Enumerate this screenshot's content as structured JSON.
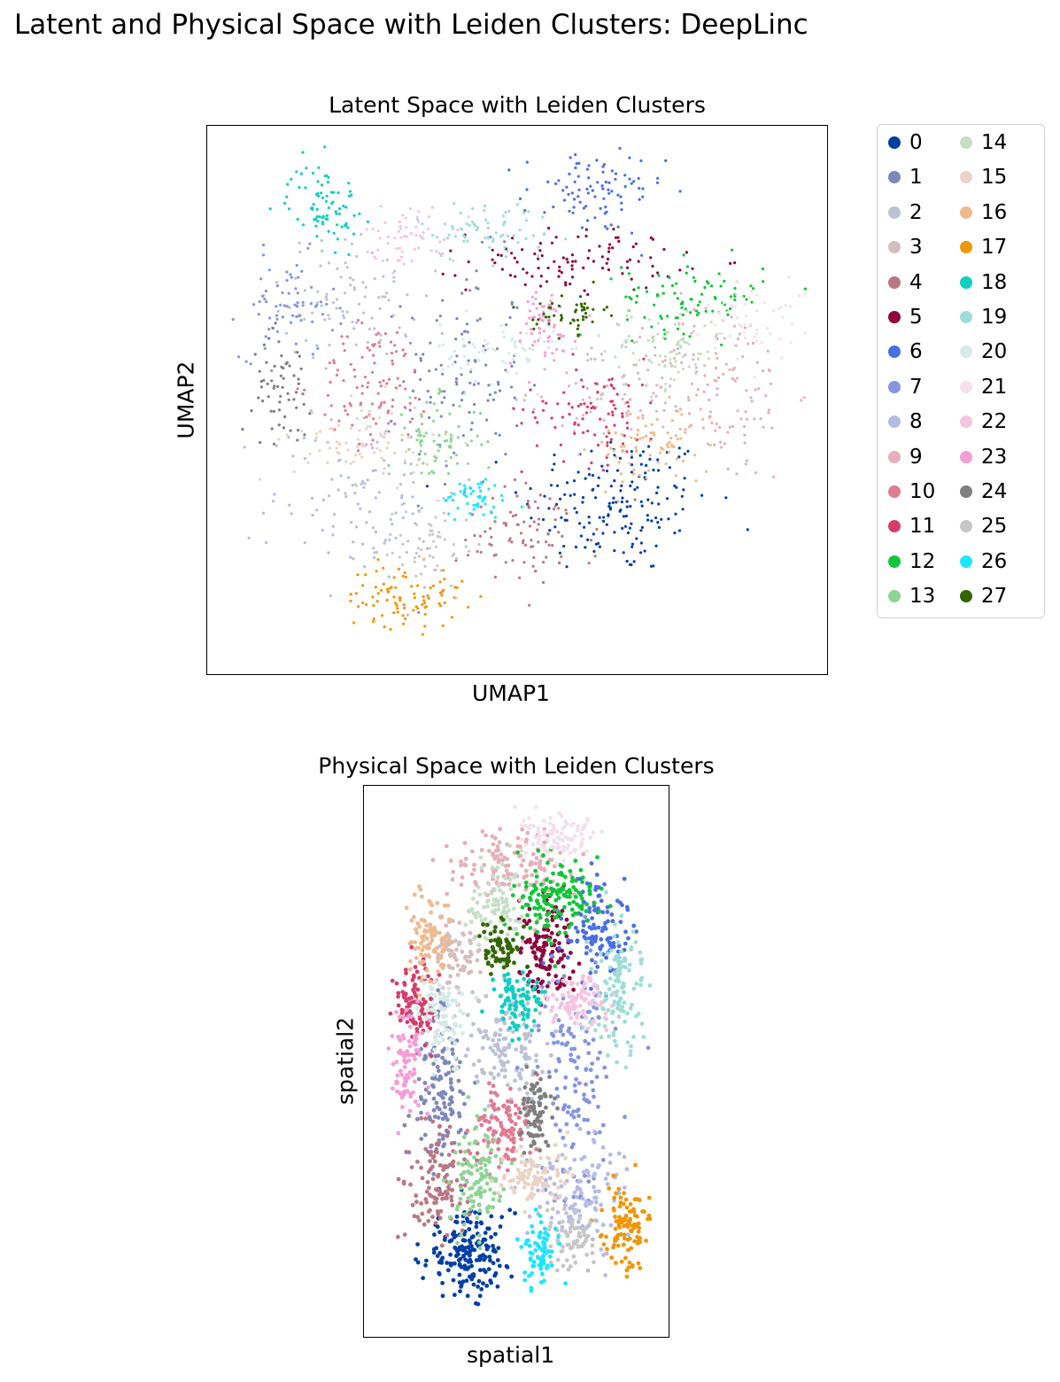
{
  "suptitle": "Latent and Physical Space with Leiden Clusters: DeepLinc",
  "chart_data": [
    {
      "type": "scatter",
      "title": "Latent Space with Leiden Clusters",
      "xlabel": "UMAP1",
      "ylabel": "UMAP2",
      "xlim": [
        0,
        100
      ],
      "ylim": [
        0,
        100
      ],
      "grid": false,
      "legend": "outside-right",
      "clusters": [
        {
          "name": "0",
          "color": "#023fa5",
          "cx": 67,
          "cy": 30,
          "sx": 8,
          "sy": 7,
          "n": 170
        },
        {
          "name": "1",
          "color": "#7d87b9",
          "cx": 41,
          "cy": 55,
          "sx": 5,
          "sy": 11,
          "n": 110
        },
        {
          "name": "2",
          "color": "#bec1d4",
          "cx": 22,
          "cy": 70,
          "sx": 6,
          "sy": 6,
          "n": 90
        },
        {
          "name": "3",
          "color": "#d6bcc0",
          "cx": 68,
          "cy": 52,
          "sx": 8,
          "sy": 5,
          "n": 90
        },
        {
          "name": "4",
          "color": "#bb7784",
          "cx": 52,
          "cy": 24,
          "sx": 6,
          "sy": 5,
          "n": 90
        },
        {
          "name": "5",
          "color": "#8e063b",
          "cx": 60,
          "cy": 77,
          "sx": 9,
          "sy": 3,
          "n": 100
        },
        {
          "name": "6",
          "color": "#4a6fe3",
          "cx": 63,
          "cy": 90,
          "sx": 6,
          "sy": 4,
          "n": 90
        },
        {
          "name": "7",
          "color": "#8595e1",
          "cx": 11,
          "cy": 68,
          "sx": 4,
          "sy": 5,
          "n": 70
        },
        {
          "name": "8",
          "color": "#b5bbe3",
          "cx": 24,
          "cy": 32,
          "sx": 8,
          "sy": 9,
          "n": 110
        },
        {
          "name": "9",
          "color": "#e6afb9",
          "cx": 85,
          "cy": 52,
          "sx": 6,
          "sy": 9,
          "n": 110
        },
        {
          "name": "10",
          "color": "#e07b91",
          "cx": 26,
          "cy": 53,
          "sx": 5,
          "sy": 6,
          "n": 100
        },
        {
          "name": "11",
          "color": "#d33f6a",
          "cx": 63,
          "cy": 48,
          "sx": 6,
          "sy": 5,
          "n": 90
        },
        {
          "name": "12",
          "color": "#11c638",
          "cx": 80,
          "cy": 70,
          "sx": 6,
          "sy": 3.5,
          "n": 90
        },
        {
          "name": "13",
          "color": "#8dd593",
          "cx": 36,
          "cy": 42,
          "sx": 4,
          "sy": 4,
          "n": 70
        },
        {
          "name": "14",
          "color": "#c6dec7",
          "cx": 75,
          "cy": 60,
          "sx": 5,
          "sy": 4,
          "n": 80
        },
        {
          "name": "15",
          "color": "#ead3c6",
          "cx": 24,
          "cy": 42,
          "sx": 6,
          "sy": 4,
          "n": 80
        },
        {
          "name": "16",
          "color": "#f0b98d",
          "cx": 73,
          "cy": 41,
          "sx": 5,
          "sy": 4,
          "n": 80
        },
        {
          "name": "17",
          "color": "#ef9708",
          "cx": 31,
          "cy": 12,
          "sx": 5,
          "sy": 3,
          "n": 90
        },
        {
          "name": "18",
          "color": "#0fcfc0",
          "cx": 17,
          "cy": 88,
          "sx": 3,
          "sy": 4,
          "n": 80
        },
        {
          "name": "19",
          "color": "#9cded6",
          "cx": 45,
          "cy": 83,
          "sx": 6,
          "sy": 3,
          "n": 70
        },
        {
          "name": "20",
          "color": "#d5eae7",
          "cx": 47,
          "cy": 59,
          "sx": 5,
          "sy": 3,
          "n": 70
        },
        {
          "name": "21",
          "color": "#f3e1eb",
          "cx": 90,
          "cy": 66,
          "sx": 4,
          "sy": 4,
          "n": 60
        },
        {
          "name": "22",
          "color": "#f6c4e1",
          "cx": 32,
          "cy": 82,
          "sx": 4,
          "sy": 3,
          "n": 60
        },
        {
          "name": "23",
          "color": "#f79cd4",
          "cx": 54,
          "cy": 64,
          "sx": 3,
          "sy": 4,
          "n": 60
        },
        {
          "name": "24",
          "color": "#7f7f7f",
          "cx": 10,
          "cy": 53,
          "sx": 2.5,
          "sy": 5,
          "n": 60
        },
        {
          "name": "25",
          "color": "#c7c7c7",
          "cx": 35,
          "cy": 22,
          "sx": 4,
          "sy": 4,
          "n": 60
        },
        {
          "name": "26",
          "color": "#1ce6ff",
          "cx": 43,
          "cy": 31,
          "sx": 3,
          "sy": 2,
          "n": 50
        },
        {
          "name": "27",
          "color": "#336600",
          "cx": 59,
          "cy": 67,
          "sx": 3,
          "sy": 2,
          "n": 50
        }
      ]
    },
    {
      "type": "scatter",
      "title": "Physical Space with Leiden Clusters",
      "xlabel": "spatial1",
      "ylabel": "spatial2",
      "xlim": [
        0,
        100
      ],
      "ylim": [
        0,
        100
      ],
      "grid": false,
      "clusters": [
        {
          "name": "0",
          "cx": 32,
          "cy": 13,
          "sx": 8,
          "sy": 4,
          "n": 190
        },
        {
          "name": "1",
          "cx": 22,
          "cy": 45,
          "sx": 5,
          "sy": 8,
          "n": 140
        },
        {
          "name": "2",
          "cx": 48,
          "cy": 52,
          "sx": 7,
          "sy": 6,
          "n": 140
        },
        {
          "name": "3",
          "cx": 28,
          "cy": 70,
          "sx": 5,
          "sy": 4,
          "n": 90
        },
        {
          "name": "4",
          "cx": 22,
          "cy": 27,
          "sx": 6,
          "sy": 5,
          "n": 120
        },
        {
          "name": "5",
          "cx": 61,
          "cy": 71,
          "sx": 5,
          "sy": 5,
          "n": 130
        },
        {
          "name": "6",
          "cx": 80,
          "cy": 76,
          "sx": 6,
          "sy": 5,
          "n": 120
        },
        {
          "name": "7",
          "cx": 72,
          "cy": 47,
          "sx": 7,
          "sy": 12,
          "n": 140
        },
        {
          "name": "8",
          "cx": 73,
          "cy": 25,
          "sx": 8,
          "sy": 5,
          "n": 120
        },
        {
          "name": "9",
          "cx": 46,
          "cy": 88,
          "sx": 11,
          "sy": 4,
          "n": 130
        },
        {
          "name": "10",
          "cx": 45,
          "cy": 37,
          "sx": 6,
          "sy": 4,
          "n": 110
        },
        {
          "name": "11",
          "cx": 13,
          "cy": 62,
          "sx": 3.5,
          "sy": 4,
          "n": 100
        },
        {
          "name": "12",
          "cx": 64,
          "cy": 82,
          "sx": 7,
          "sy": 4,
          "n": 140
        },
        {
          "name": "13",
          "cx": 36,
          "cy": 28,
          "sx": 5,
          "sy": 5,
          "n": 110
        },
        {
          "name": "14",
          "cx": 43,
          "cy": 79,
          "sx": 5,
          "sy": 5,
          "n": 100
        },
        {
          "name": "15",
          "cx": 56,
          "cy": 28,
          "sx": 6,
          "sy": 3,
          "n": 100
        },
        {
          "name": "16",
          "cx": 18,
          "cy": 73,
          "sx": 4,
          "sy": 4,
          "n": 90
        },
        {
          "name": "17",
          "cx": 90,
          "cy": 18,
          "sx": 4,
          "sy": 4,
          "n": 110
        },
        {
          "name": "18",
          "cx": 51,
          "cy": 62,
          "sx": 4,
          "sy": 3,
          "n": 90
        },
        {
          "name": "19",
          "cx": 87,
          "cy": 63,
          "sx": 5,
          "sy": 6,
          "n": 120
        },
        {
          "name": "20",
          "cx": 23,
          "cy": 58,
          "sx": 4,
          "sy": 4,
          "n": 90
        },
        {
          "name": "21",
          "cx": 65,
          "cy": 94,
          "sx": 7,
          "sy": 2.5,
          "n": 90
        },
        {
          "name": "22",
          "cx": 73,
          "cy": 62,
          "sx": 6,
          "sy": 2.5,
          "n": 90
        },
        {
          "name": "23",
          "cx": 10,
          "cy": 50,
          "sx": 3,
          "sy": 5,
          "n": 90
        },
        {
          "name": "24",
          "cx": 57,
          "cy": 40,
          "sx": 3,
          "sy": 4,
          "n": 80
        },
        {
          "name": "25",
          "cx": 69,
          "cy": 16,
          "sx": 5,
          "sy": 3,
          "n": 80
        },
        {
          "name": "26",
          "cx": 59,
          "cy": 13,
          "sx": 3,
          "sy": 3,
          "n": 70
        },
        {
          "name": "27",
          "cx": 45,
          "cy": 72,
          "sx": 4,
          "sy": 2.5,
          "n": 70
        }
      ]
    }
  ]
}
